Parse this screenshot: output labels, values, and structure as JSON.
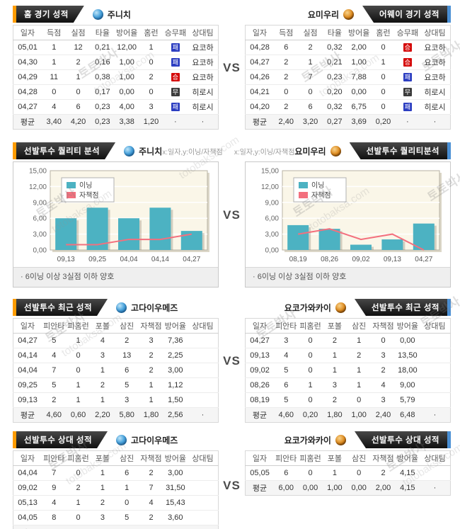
{
  "vs_label": "VS",
  "watermark": {
    "korean": "토토박사",
    "domain": "totobaksa.com"
  },
  "badges": {
    "win": {
      "label": "승",
      "color": "#d50a0a"
    },
    "draw": {
      "label": "무",
      "color": "#3c3c3c"
    },
    "loss": {
      "label": "패",
      "color": "#2c3ec1"
    }
  },
  "sections": {
    "record": {
      "left": {
        "tab_title": "홈 경기 성적",
        "team": "주니치",
        "table": {
          "columns": [
            "일자",
            "득점",
            "실점",
            "타율",
            "방어율",
            "홈런",
            "승무패",
            "상대팀"
          ],
          "rows": [
            [
              "05,01",
              "1",
              "12",
              "0,21",
              "12,00",
              "1",
              {
                "badge": "loss"
              },
              "요코하"
            ],
            [
              "04,30",
              "1",
              "2",
              "0,16",
              "1,00",
              "0",
              {
                "badge": "loss"
              },
              "요코하"
            ],
            [
              "04,29",
              "11",
              "1",
              "0,38",
              "1,00",
              "2",
              {
                "badge": "win"
              },
              "요코하"
            ],
            [
              "04,28",
              "0",
              "0",
              "0,17",
              "0,00",
              "0",
              {
                "badge": "draw"
              },
              "히로시"
            ],
            [
              "04,27",
              "4",
              "6",
              "0,23",
              "4,00",
              "3",
              {
                "badge": "loss"
              },
              "히로시"
            ]
          ],
          "avg_row": [
            "평균",
            "3,40",
            "4,20",
            "0,23",
            "3,38",
            "1,20",
            "·",
            "·"
          ]
        }
      },
      "right": {
        "tab_title": "어웨이 경기 성적",
        "team": "요미우리",
        "table": {
          "columns": [
            "일자",
            "득점",
            "실점",
            "타율",
            "방어율",
            "홈런",
            "승무패",
            "상대팀"
          ],
          "rows": [
            [
              "04,28",
              "6",
              "2",
              "0,32",
              "2,00",
              "0",
              {
                "badge": "win"
              },
              "요코하"
            ],
            [
              "04,27",
              "2",
              "1",
              "0,21",
              "1,00",
              "1",
              {
                "badge": "win"
              },
              "요코하"
            ],
            [
              "04,26",
              "2",
              "7",
              "0,23",
              "7,88",
              "0",
              {
                "badge": "loss"
              },
              "요코하"
            ],
            [
              "04,21",
              "0",
              "0",
              "0,20",
              "0,00",
              "0",
              {
                "badge": "draw"
              },
              "히로시"
            ],
            [
              "04,20",
              "2",
              "6",
              "0,32",
              "6,75",
              "0",
              {
                "badge": "loss"
              },
              "히로시"
            ]
          ],
          "avg_row": [
            "평균",
            "2,40",
            "3,20",
            "0,27",
            "3,69",
            "0,20",
            "·",
            "·"
          ]
        }
      }
    },
    "quality": {
      "left": {
        "tab_title": "선발투수 퀄리티 분석",
        "team": "주니치",
        "axis_note": "x:일자,y:이닝/자책점",
        "footnote": "·  6이닝 이상 3실점 이하 양호",
        "chart_data": {
          "type": "bar+line",
          "categories": [
            "09,13",
            "09,25",
            "04,04",
            "04,14",
            "04,27"
          ],
          "series": [
            {
              "name": "이닝",
              "type": "bar",
              "values": [
                6,
                8,
                6,
                8,
                3.6
              ]
            },
            {
              "name": "자책점",
              "type": "line",
              "values": [
                1,
                1,
                2,
                2,
                3
              ]
            }
          ],
          "ylim": [
            0,
            15
          ],
          "ytick_labels": [
            "0,00",
            "3,00",
            "6,00",
            "9,00",
            "12,00",
            "15,00"
          ],
          "bar_color": "#4cb2c2",
          "line_color": "#f3707e",
          "plot_bg": "#faf6e8",
          "grid": true,
          "legend_position": "top-left"
        }
      },
      "right": {
        "tab_title": "선발투수 퀄리티분석",
        "team": "요미우리",
        "axis_note": "x:일자,y:이닝/자책점",
        "footnote": "·  6이닝 이상 3실점 이하 양호",
        "chart_data": {
          "type": "bar+line",
          "categories": [
            "08,19",
            "08,26",
            "09,02",
            "09,13",
            "04,27"
          ],
          "series": [
            {
              "name": "이닝",
              "type": "bar",
              "values": [
                4.7,
                4,
                1,
                2,
                5
              ]
            },
            {
              "name": "자책점",
              "type": "line",
              "values": [
                3,
                4,
                2,
                3,
                0
              ]
            }
          ],
          "ylim": [
            0,
            15
          ],
          "ytick_labels": [
            "0,00",
            "3,00",
            "6,00",
            "9,00",
            "12,00",
            "15,00"
          ],
          "bar_color": "#4cb2c2",
          "line_color": "#f3707e",
          "plot_bg": "#faf6e8",
          "grid": true,
          "legend_position": "top-left"
        }
      }
    },
    "recent": {
      "left": {
        "tab_title": "선발투수 최근 성적",
        "team": "고다이우메즈",
        "table": {
          "columns": [
            "일자",
            "피안타",
            "피홈런",
            "포볼",
            "삼진",
            "자책점",
            "방어율",
            "상대팀"
          ],
          "rows": [
            [
              "04,27",
              "5",
              "1",
              "4",
              "2",
              "3",
              "7,36",
              ""
            ],
            [
              "04,14",
              "4",
              "0",
              "3",
              "13",
              "2",
              "2,25",
              ""
            ],
            [
              "04,04",
              "7",
              "0",
              "1",
              "6",
              "2",
              "3,00",
              ""
            ],
            [
              "09,25",
              "5",
              "1",
              "2",
              "5",
              "1",
              "1,12",
              ""
            ],
            [
              "09,13",
              "2",
              "1",
              "1",
              "3",
              "1",
              "1,50",
              ""
            ]
          ],
          "avg_row": [
            "평균",
            "4,60",
            "0,60",
            "2,20",
            "5,80",
            "1,80",
            "2,56",
            "·"
          ]
        }
      },
      "right": {
        "tab_title": "선발투수 최근 성적",
        "team": "요코가와카이",
        "table": {
          "columns": [
            "일자",
            "피안타",
            "피홈런",
            "포볼",
            "삼진",
            "자책점",
            "방어율",
            "상대팀"
          ],
          "rows": [
            [
              "04,27",
              "3",
              "0",
              "2",
              "1",
              "0",
              "0,00",
              ""
            ],
            [
              "09,13",
              "4",
              "0",
              "1",
              "2",
              "3",
              "13,50",
              ""
            ],
            [
              "09,02",
              "5",
              "0",
              "1",
              "1",
              "2",
              "18,00",
              ""
            ],
            [
              "08,26",
              "6",
              "1",
              "3",
              "1",
              "4",
              "9,00",
              ""
            ],
            [
              "08,19",
              "5",
              "0",
              "2",
              "0",
              "3",
              "5,79",
              ""
            ]
          ],
          "avg_row": [
            "평균",
            "4,60",
            "0,20",
            "1,80",
            "1,00",
            "2,40",
            "6,48",
            "·"
          ]
        }
      }
    },
    "versus": {
      "left": {
        "tab_title": "선발투수 상대 성적",
        "team": "고다이우메즈",
        "table": {
          "columns": [
            "일자",
            "피안타",
            "피홈런",
            "포볼",
            "삼진",
            "자책점",
            "방어율",
            "상대팀"
          ],
          "rows": [
            [
              "04,04",
              "7",
              "0",
              "1",
              "6",
              "2",
              "3,00",
              ""
            ],
            [
              "09,02",
              "9",
              "2",
              "1",
              "1",
              "7",
              "31,50",
              ""
            ],
            [
              "05,13",
              "4",
              "1",
              "2",
              "0",
              "4",
              "15,43",
              ""
            ],
            [
              "04,05",
              "8",
              "0",
              "3",
              "5",
              "2",
              "3,60",
              ""
            ]
          ],
          "avg_row": [
            "평균",
            "7,00",
            "0,75",
            "1,75",
            "3,00",
            "3,75",
            "8,80",
            "·"
          ]
        }
      },
      "right": {
        "tab_title": "선발투수 상대 성적",
        "team": "요코가와카이",
        "table": {
          "columns": [
            "일자",
            "피안타",
            "피홈런",
            "포볼",
            "삼진",
            "자책점",
            "방어율",
            "상대팀"
          ],
          "rows": [
            [
              "05,05",
              "6",
              "0",
              "1",
              "0",
              "2",
              "4,15",
              ""
            ]
          ],
          "avg_row": [
            "평균",
            "6,00",
            "0,00",
            "1,00",
            "0,00",
            "2,00",
            "4,15",
            "·"
          ]
        }
      }
    }
  }
}
